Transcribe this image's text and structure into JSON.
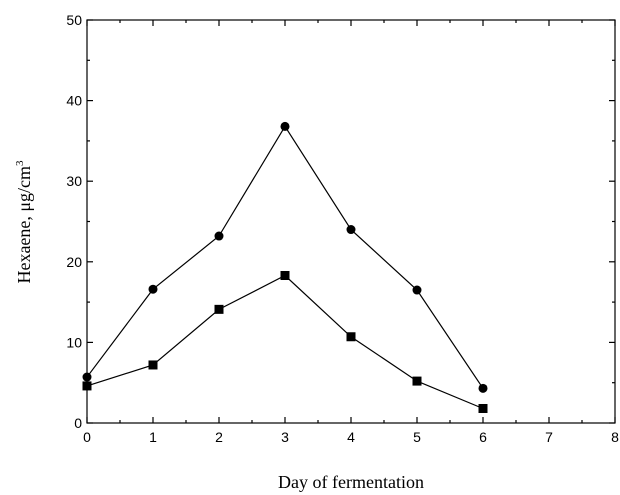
{
  "chart_data": {
    "type": "line",
    "title": "",
    "xlabel": "Day of fermentation",
    "ylabel": "Hexaene,  μg/cm",
    "ylabel_superscript": "3",
    "xlim": [
      0,
      8
    ],
    "ylim": [
      0,
      50
    ],
    "xticks": [
      "0",
      "1",
      "2",
      "3",
      "4",
      "5",
      "6",
      "7",
      "8"
    ],
    "yticks": [
      "0",
      "10",
      "20",
      "30",
      "40",
      "50"
    ],
    "grid": false,
    "legend": "none",
    "series": [
      {
        "marker": "circle",
        "x": [
          0,
          1,
          2,
          3,
          4,
          5,
          6
        ],
        "y": [
          5.7,
          16.6,
          23.2,
          36.8,
          24.0,
          16.5,
          4.3
        ]
      },
      {
        "marker": "square",
        "x": [
          0,
          1,
          2,
          3,
          4,
          5,
          6
        ],
        "y": [
          4.6,
          7.2,
          14.1,
          18.3,
          10.7,
          5.2,
          1.8
        ]
      }
    ]
  }
}
